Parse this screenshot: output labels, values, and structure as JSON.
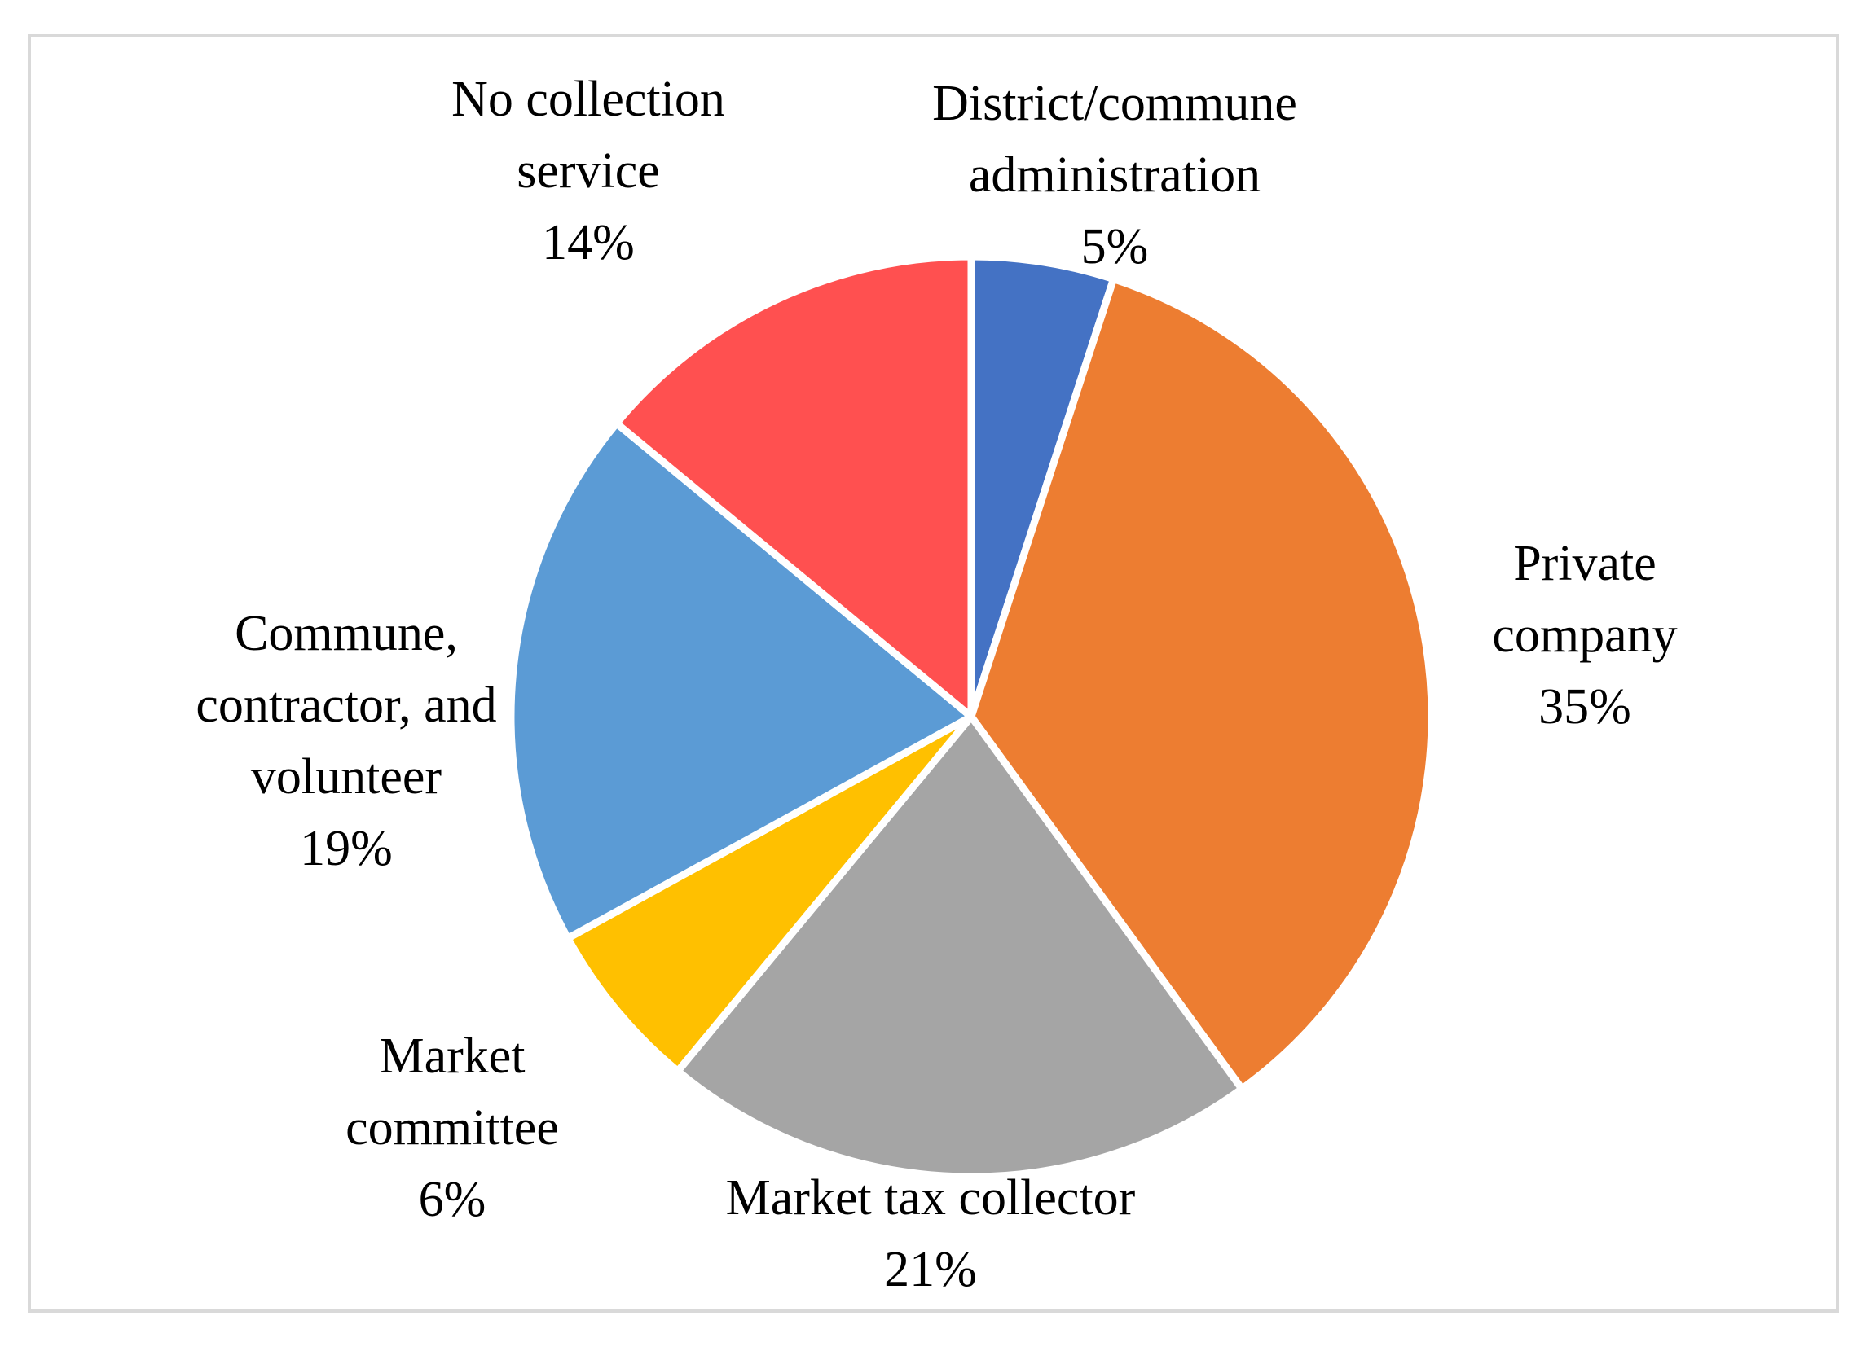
{
  "chart_data": {
    "type": "pie",
    "title": "",
    "start_angle_deg": 0,
    "direction": "clockwise",
    "slice_border_color": "#ffffff",
    "slices": [
      {
        "name": "district-commune-administration",
        "label_lines": [
          "District/commune",
          "administration"
        ],
        "value_label": "5%",
        "value": 5,
        "color": "#4472C4"
      },
      {
        "name": "private-company",
        "label_lines": [
          "Private",
          "company"
        ],
        "value_label": "35%",
        "value": 35,
        "color": "#ED7D31"
      },
      {
        "name": "market-tax-collector",
        "label_lines": [
          "Market tax collector"
        ],
        "value_label": "21%",
        "value": 21,
        "color": "#A5A5A5"
      },
      {
        "name": "market-committee",
        "label_lines": [
          "Market",
          "committee"
        ],
        "value_label": "6%",
        "value": 6,
        "color": "#FFC000"
      },
      {
        "name": "commune-contractor-volunteer",
        "label_lines": [
          "Commune,",
          "contractor, and",
          "volunteer"
        ],
        "value_label": "19%",
        "value": 19,
        "color": "#5B9BD5"
      },
      {
        "name": "no-collection-service",
        "label_lines": [
          "No collection",
          "service"
        ],
        "value_label": "14%",
        "value": 14,
        "color": "#FF5050"
      }
    ]
  }
}
